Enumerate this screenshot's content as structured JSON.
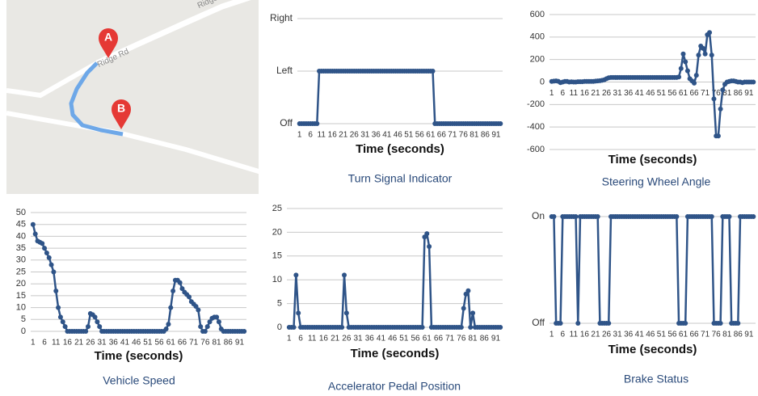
{
  "map": {
    "markers": [
      "A",
      "B"
    ],
    "road_label": "Ridge Rd",
    "road_label_2": "Ridge"
  },
  "chart_data": [
    {
      "type": "line",
      "title": "Turn Signal Indicator",
      "xlabel": "Time (seconds)",
      "color": "#2f5488",
      "grid": true,
      "x": [
        1,
        2,
        3,
        4,
        5,
        6,
        7,
        8,
        9,
        10,
        11,
        12,
        13,
        14,
        15,
        16,
        17,
        18,
        19,
        20,
        21,
        22,
        23,
        24,
        25,
        26,
        27,
        28,
        29,
        30,
        31,
        32,
        33,
        34,
        35,
        36,
        37,
        38,
        39,
        40,
        41,
        42,
        43,
        44,
        45,
        46,
        47,
        48,
        49,
        50,
        51,
        52,
        53,
        54,
        55,
        56,
        57,
        58,
        59,
        60,
        61,
        62,
        63,
        64,
        65,
        66,
        67,
        68,
        69,
        70,
        71,
        72,
        73,
        74,
        75,
        76,
        77,
        78,
        79,
        80,
        81,
        82,
        83,
        84,
        85,
        86,
        87,
        88,
        89,
        90,
        91,
        92,
        93
      ],
      "values": [
        0,
        0,
        0,
        0,
        0,
        0,
        0,
        0,
        0,
        1,
        1,
        1,
        1,
        1,
        1,
        1,
        1,
        1,
        1,
        1,
        1,
        1,
        1,
        1,
        1,
        1,
        1,
        1,
        1,
        1,
        1,
        1,
        1,
        1,
        1,
        1,
        1,
        1,
        1,
        1,
        1,
        1,
        1,
        1,
        1,
        1,
        1,
        1,
        1,
        1,
        1,
        1,
        1,
        1,
        1,
        1,
        1,
        1,
        1,
        1,
        1,
        1,
        0,
        0,
        0,
        0,
        0,
        0,
        0,
        0,
        0,
        0,
        0,
        0,
        0,
        0,
        0,
        0,
        0,
        0,
        0,
        0,
        0,
        0,
        0,
        0,
        0,
        0,
        0,
        0,
        0,
        0,
        0
      ],
      "xlim": [
        0,
        94
      ],
      "xticks": [
        1,
        6,
        11,
        16,
        21,
        26,
        31,
        36,
        41,
        46,
        51,
        56,
        61,
        66,
        71,
        76,
        81,
        86,
        91
      ],
      "ylim": [
        0,
        2
      ],
      "yticks": [
        {
          "value": 0,
          "label": "Off"
        },
        {
          "value": 1,
          "label": "Left"
        },
        {
          "value": 2,
          "label": "Right"
        }
      ]
    },
    {
      "type": "line",
      "title": "Steering Wheel Angle",
      "xlabel": "Time (seconds)",
      "color": "#2f5488",
      "grid": true,
      "x": [
        1,
        2,
        3,
        4,
        5,
        6,
        7,
        8,
        9,
        10,
        11,
        12,
        13,
        14,
        15,
        16,
        17,
        18,
        19,
        20,
        21,
        22,
        23,
        24,
        25,
        26,
        27,
        28,
        29,
        30,
        31,
        32,
        33,
        34,
        35,
        36,
        37,
        38,
        39,
        40,
        41,
        42,
        43,
        44,
        45,
        46,
        47,
        48,
        49,
        50,
        51,
        52,
        53,
        54,
        55,
        56,
        57,
        58,
        59,
        60,
        61,
        62,
        63,
        64,
        65,
        66,
        67,
        68,
        69,
        70,
        71,
        72,
        73,
        74,
        75,
        76,
        77,
        78,
        79,
        80,
        81,
        82,
        83,
        84,
        85,
        86,
        87,
        88,
        89,
        90,
        91,
        92,
        93
      ],
      "values": [
        5,
        8,
        10,
        6,
        -5,
        0,
        5,
        5,
        0,
        2,
        0,
        0,
        3,
        3,
        3,
        5,
        5,
        5,
        5,
        5,
        8,
        10,
        12,
        15,
        20,
        30,
        38,
        40,
        40,
        40,
        40,
        40,
        40,
        40,
        40,
        40,
        40,
        40,
        40,
        40,
        40,
        40,
        40,
        40,
        40,
        40,
        40,
        40,
        40,
        40,
        40,
        40,
        40,
        40,
        40,
        40,
        40,
        40,
        45,
        120,
        250,
        180,
        100,
        30,
        10,
        -10,
        60,
        240,
        320,
        300,
        250,
        420,
        440,
        240,
        -150,
        -480,
        -480,
        -240,
        -70,
        -20,
        0,
        5,
        10,
        10,
        5,
        0,
        0,
        -5,
        0,
        0,
        0,
        0,
        0
      ],
      "xlim": [
        0,
        94
      ],
      "xticks": [
        1,
        6,
        11,
        16,
        21,
        26,
        31,
        36,
        41,
        46,
        51,
        56,
        61,
        66,
        71,
        76,
        81,
        86,
        91
      ],
      "ylim": [
        -600,
        600
      ],
      "yticks": [
        -600,
        -400,
        -200,
        0,
        200,
        400,
        600
      ]
    },
    {
      "type": "line",
      "title": "Vehicle Speed",
      "xlabel": "Time (seconds)",
      "color": "#2f5488",
      "grid": true,
      "x": [
        1,
        2,
        3,
        4,
        5,
        6,
        7,
        8,
        9,
        10,
        11,
        12,
        13,
        14,
        15,
        16,
        17,
        18,
        19,
        20,
        21,
        22,
        23,
        24,
        25,
        26,
        27,
        28,
        29,
        30,
        31,
        32,
        33,
        34,
        35,
        36,
        37,
        38,
        39,
        40,
        41,
        42,
        43,
        44,
        45,
        46,
        47,
        48,
        49,
        50,
        51,
        52,
        53,
        54,
        55,
        56,
        57,
        58,
        59,
        60,
        61,
        62,
        63,
        64,
        65,
        66,
        67,
        68,
        69,
        70,
        71,
        72,
        73,
        74,
        75,
        76,
        77,
        78,
        79,
        80,
        81,
        82,
        83,
        84,
        85,
        86,
        87,
        88,
        89,
        90,
        91,
        92,
        93
      ],
      "values": [
        45,
        41,
        38,
        37.5,
        37,
        35,
        33,
        31,
        28,
        25,
        17,
        10,
        6,
        4,
        2,
        0,
        0,
        0,
        0,
        0,
        0,
        0,
        0,
        0,
        2,
        7.5,
        7,
        6,
        4,
        2,
        0,
        0,
        0,
        0,
        0,
        0,
        0,
        0,
        0,
        0,
        0,
        0,
        0,
        0,
        0,
        0,
        0,
        0,
        0,
        0,
        0,
        0,
        0,
        0,
        0,
        0,
        0,
        0,
        1,
        3,
        10,
        17,
        21.5,
        21.5,
        20.5,
        18,
        16.5,
        15.5,
        14.5,
        12.5,
        11.5,
        10.5,
        9,
        2,
        0,
        0,
        2,
        4,
        5.5,
        6,
        6,
        4,
        1,
        0,
        0,
        0,
        0,
        0,
        0,
        0,
        0,
        0,
        0
      ],
      "xlim": [
        0,
        94
      ],
      "xticks": [
        1,
        6,
        11,
        16,
        21,
        26,
        31,
        36,
        41,
        46,
        51,
        56,
        61,
        66,
        71,
        76,
        81,
        86,
        91
      ],
      "ylim": [
        0,
        50
      ],
      "yticks": [
        0,
        5,
        10,
        15,
        20,
        25,
        30,
        35,
        40,
        45,
        50
      ]
    },
    {
      "type": "line",
      "title": "Accelerator Pedal Position",
      "xlabel": "Time (seconds)",
      "color": "#2f5488",
      "grid": true,
      "x": [
        1,
        2,
        3,
        4,
        5,
        6,
        7,
        8,
        9,
        10,
        11,
        12,
        13,
        14,
        15,
        16,
        17,
        18,
        19,
        20,
        21,
        22,
        23,
        24,
        25,
        26,
        27,
        28,
        29,
        30,
        31,
        32,
        33,
        34,
        35,
        36,
        37,
        38,
        39,
        40,
        41,
        42,
        43,
        44,
        45,
        46,
        47,
        48,
        49,
        50,
        51,
        52,
        53,
        54,
        55,
        56,
        57,
        58,
        59,
        60,
        61,
        62,
        63,
        64,
        65,
        66,
        67,
        68,
        69,
        70,
        71,
        72,
        73,
        74,
        75,
        76,
        77,
        78,
        79,
        80,
        81,
        82,
        83,
        84,
        85,
        86,
        87,
        88,
        89,
        90,
        91,
        92,
        93
      ],
      "values": [
        0,
        0,
        0,
        11,
        3,
        0,
        0,
        0,
        0,
        0,
        0,
        0,
        0,
        0,
        0,
        0,
        0,
        0,
        0,
        0,
        0,
        0,
        0,
        0,
        11,
        3,
        0,
        0,
        0,
        0,
        0,
        0,
        0,
        0,
        0,
        0,
        0,
        0,
        0,
        0,
        0,
        0,
        0,
        0,
        0,
        0,
        0,
        0,
        0,
        0,
        0,
        0,
        0,
        0,
        0,
        0,
        0,
        0,
        0,
        19,
        19.7,
        17,
        0,
        0,
        0,
        0,
        0,
        0,
        0,
        0,
        0,
        0,
        0,
        0,
        0,
        0,
        4,
        7,
        7.7,
        0,
        3,
        0,
        0,
        0,
        0,
        0,
        0,
        0,
        0,
        0,
        0,
        0,
        0
      ],
      "xlim": [
        0,
        94
      ],
      "xticks": [
        1,
        6,
        11,
        16,
        21,
        26,
        31,
        36,
        41,
        46,
        51,
        56,
        61,
        66,
        71,
        76,
        81,
        86,
        91
      ],
      "ylim": [
        0,
        25
      ],
      "yticks": [
        0,
        5,
        10,
        15,
        20,
        25
      ]
    },
    {
      "type": "line",
      "title": "Brake Status",
      "xlabel": "Time (seconds)",
      "color": "#2f5488",
      "grid": true,
      "x": [
        1,
        2,
        3,
        4,
        5,
        6,
        7,
        8,
        9,
        10,
        11,
        12,
        13,
        14,
        15,
        16,
        17,
        18,
        19,
        20,
        21,
        22,
        23,
        24,
        25,
        26,
        27,
        28,
        29,
        30,
        31,
        32,
        33,
        34,
        35,
        36,
        37,
        38,
        39,
        40,
        41,
        42,
        43,
        44,
        45,
        46,
        47,
        48,
        49,
        50,
        51,
        52,
        53,
        54,
        55,
        56,
        57,
        58,
        59,
        60,
        61,
        62,
        63,
        64,
        65,
        66,
        67,
        68,
        69,
        70,
        71,
        72,
        73,
        74,
        75,
        76,
        77,
        78,
        79,
        80,
        81,
        82,
        83,
        84,
        85,
        86,
        87,
        88,
        89,
        90,
        91,
        92,
        93
      ],
      "values": [
        1,
        1,
        0,
        0,
        0,
        1,
        1,
        1,
        1,
        1,
        1,
        1,
        0,
        1,
        1,
        1,
        1,
        1,
        1,
        1,
        1,
        1,
        0,
        0,
        0,
        0,
        0,
        1,
        1,
        1,
        1,
        1,
        1,
        1,
        1,
        1,
        1,
        1,
        1,
        1,
        1,
        1,
        1,
        1,
        1,
        1,
        1,
        1,
        1,
        1,
        1,
        1,
        1,
        1,
        1,
        1,
        1,
        1,
        0,
        0,
        0,
        0,
        1,
        1,
        1,
        1,
        1,
        1,
        1,
        1,
        1,
        1,
        1,
        1,
        0,
        0,
        0,
        0,
        1,
        1,
        1,
        1,
        0,
        0,
        0,
        0,
        1,
        1,
        1,
        1,
        1,
        1,
        1
      ],
      "xlim": [
        0,
        94
      ],
      "xticks": [
        1,
        6,
        11,
        16,
        21,
        26,
        31,
        36,
        41,
        46,
        51,
        56,
        61,
        66,
        71,
        76,
        81,
        86,
        91
      ],
      "ylim": [
        0,
        1
      ],
      "yticks": [
        {
          "value": 0,
          "label": "Off"
        },
        {
          "value": 1,
          "label": "On"
        }
      ]
    }
  ]
}
